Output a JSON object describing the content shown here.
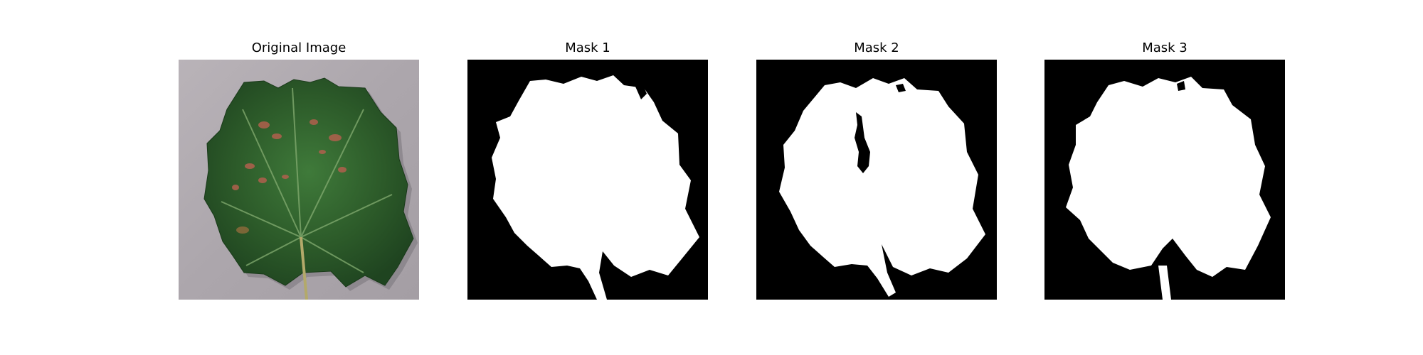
{
  "figure": {
    "panels": [
      {
        "title": "Original Image",
        "kind": "photo",
        "background": "#b5aeb4",
        "leaf_color": "#2f5a2c",
        "spot_color": "#b0604d"
      },
      {
        "title": "Mask 1",
        "kind": "mask",
        "foreground": "#ffffff",
        "background": "#000000"
      },
      {
        "title": "Mask 2",
        "kind": "mask",
        "foreground": "#ffffff",
        "background": "#000000"
      },
      {
        "title": "Mask 3",
        "kind": "mask",
        "foreground": "#ffffff",
        "background": "#000000"
      }
    ]
  }
}
